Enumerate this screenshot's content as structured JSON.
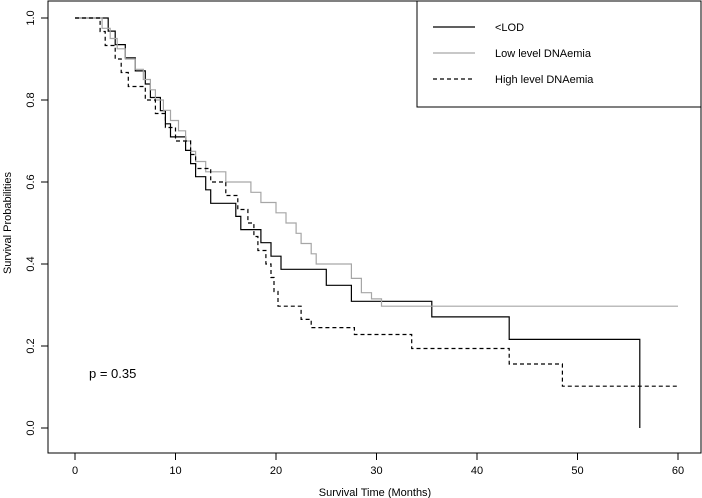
{
  "chart_data": {
    "type": "line",
    "title": "",
    "xlabel": "Survival Time (Months)",
    "ylabel": "Survival Probabilities",
    "xlim": [
      0,
      60
    ],
    "ylim": [
      0,
      1
    ],
    "xticks": [
      "0",
      "10",
      "20",
      "30",
      "40",
      "50",
      "60"
    ],
    "yticks": [
      "0.0",
      "0.2",
      "0.4",
      "0.6",
      "0.8",
      "1.0"
    ],
    "grid": false,
    "legend_position": "top-right",
    "annotation": "p = 0.35",
    "series": [
      {
        "name": "<LOD",
        "color": "#000000",
        "line_style": "solid",
        "points": [
          [
            0,
            1.0
          ],
          [
            3.3,
            1.0
          ],
          [
            3.3,
            0.968
          ],
          [
            4.0,
            0.968
          ],
          [
            4.0,
            0.935
          ],
          [
            5.0,
            0.935
          ],
          [
            5.0,
            0.903
          ],
          [
            6.0,
            0.903
          ],
          [
            6.0,
            0.871
          ],
          [
            7.0,
            0.871
          ],
          [
            7.0,
            0.839
          ],
          [
            7.5,
            0.839
          ],
          [
            7.5,
            0.806
          ],
          [
            8.5,
            0.806
          ],
          [
            8.5,
            0.774
          ],
          [
            9.0,
            0.774
          ],
          [
            9.0,
            0.742
          ],
          [
            9.5,
            0.742
          ],
          [
            9.5,
            0.71
          ],
          [
            11.0,
            0.71
          ],
          [
            11.0,
            0.677
          ],
          [
            11.5,
            0.677
          ],
          [
            11.5,
            0.645
          ],
          [
            12.0,
            0.645
          ],
          [
            12.0,
            0.613
          ],
          [
            13.0,
            0.613
          ],
          [
            13.0,
            0.581
          ],
          [
            13.5,
            0.581
          ],
          [
            13.5,
            0.548
          ],
          [
            16.0,
            0.548
          ],
          [
            16.0,
            0.516
          ],
          [
            16.5,
            0.516
          ],
          [
            16.5,
            0.484
          ],
          [
            18.5,
            0.484
          ],
          [
            18.5,
            0.452
          ],
          [
            19.5,
            0.452
          ],
          [
            19.5,
            0.419
          ],
          [
            20.5,
            0.419
          ],
          [
            20.5,
            0.387
          ],
          [
            25.0,
            0.387
          ],
          [
            25.0,
            0.348
          ],
          [
            27.5,
            0.348
          ],
          [
            27.5,
            0.309
          ],
          [
            35.5,
            0.309
          ],
          [
            35.5,
            0.271
          ],
          [
            43.2,
            0.271
          ],
          [
            43.2,
            0.216
          ],
          [
            56.2,
            0.216
          ],
          [
            56.2,
            0.0
          ]
        ]
      },
      {
        "name": "Low level DNAemia",
        "color": "#a6a6a6",
        "line_style": "solid",
        "points": [
          [
            0,
            1.0
          ],
          [
            2.7,
            1.0
          ],
          [
            2.7,
            0.975
          ],
          [
            3.5,
            0.975
          ],
          [
            3.5,
            0.95
          ],
          [
            4.2,
            0.95
          ],
          [
            4.2,
            0.925
          ],
          [
            5.0,
            0.925
          ],
          [
            5.0,
            0.9
          ],
          [
            6.0,
            0.9
          ],
          [
            6.0,
            0.875
          ],
          [
            6.8,
            0.875
          ],
          [
            6.8,
            0.85
          ],
          [
            7.5,
            0.85
          ],
          [
            7.5,
            0.825
          ],
          [
            8.0,
            0.825
          ],
          [
            8.0,
            0.8
          ],
          [
            8.8,
            0.8
          ],
          [
            8.8,
            0.775
          ],
          [
            9.5,
            0.775
          ],
          [
            9.5,
            0.75
          ],
          [
            10.3,
            0.75
          ],
          [
            10.3,
            0.725
          ],
          [
            11.0,
            0.725
          ],
          [
            11.0,
            0.7
          ],
          [
            11.5,
            0.7
          ],
          [
            11.5,
            0.675
          ],
          [
            12.0,
            0.675
          ],
          [
            12.0,
            0.65
          ],
          [
            13.0,
            0.65
          ],
          [
            13.0,
            0.625
          ],
          [
            15.0,
            0.625
          ],
          [
            15.0,
            0.6
          ],
          [
            17.5,
            0.6
          ],
          [
            17.5,
            0.575
          ],
          [
            18.5,
            0.575
          ],
          [
            18.5,
            0.55
          ],
          [
            20.0,
            0.55
          ],
          [
            20.0,
            0.525
          ],
          [
            21.0,
            0.525
          ],
          [
            21.0,
            0.5
          ],
          [
            22.0,
            0.5
          ],
          [
            22.0,
            0.475
          ],
          [
            22.5,
            0.475
          ],
          [
            22.5,
            0.45
          ],
          [
            23.5,
            0.45
          ],
          [
            23.5,
            0.425
          ],
          [
            24.0,
            0.425
          ],
          [
            24.0,
            0.4
          ],
          [
            27.5,
            0.4
          ],
          [
            27.5,
            0.365
          ],
          [
            28.5,
            0.365
          ],
          [
            28.5,
            0.33
          ],
          [
            29.5,
            0.33
          ],
          [
            29.5,
            0.315
          ],
          [
            30.5,
            0.315
          ],
          [
            30.5,
            0.297
          ],
          [
            60.0,
            0.297
          ]
        ]
      },
      {
        "name": "High level DNAemia",
        "color": "#000000",
        "line_style": "dashed",
        "points": [
          [
            0,
            1.0
          ],
          [
            2.5,
            1.0
          ],
          [
            2.5,
            0.967
          ],
          [
            3.0,
            0.967
          ],
          [
            3.0,
            0.933
          ],
          [
            4.0,
            0.933
          ],
          [
            4.0,
            0.9
          ],
          [
            4.6,
            0.9
          ],
          [
            4.6,
            0.867
          ],
          [
            5.3,
            0.867
          ],
          [
            5.3,
            0.833
          ],
          [
            7.0,
            0.833
          ],
          [
            7.0,
            0.8
          ],
          [
            8.0,
            0.8
          ],
          [
            8.0,
            0.767
          ],
          [
            9.0,
            0.767
          ],
          [
            9.0,
            0.733
          ],
          [
            10.0,
            0.733
          ],
          [
            10.0,
            0.7
          ],
          [
            11.5,
            0.7
          ],
          [
            11.5,
            0.667
          ],
          [
            12.0,
            0.667
          ],
          [
            12.0,
            0.633
          ],
          [
            13.5,
            0.633
          ],
          [
            13.5,
            0.6
          ],
          [
            15.0,
            0.6
          ],
          [
            15.0,
            0.567
          ],
          [
            16.2,
            0.567
          ],
          [
            16.2,
            0.533
          ],
          [
            17.2,
            0.533
          ],
          [
            17.2,
            0.5
          ],
          [
            17.8,
            0.5
          ],
          [
            17.8,
            0.467
          ],
          [
            18.2,
            0.467
          ],
          [
            18.2,
            0.433
          ],
          [
            19.0,
            0.433
          ],
          [
            19.0,
            0.4
          ],
          [
            19.5,
            0.4
          ],
          [
            19.5,
            0.367
          ],
          [
            19.8,
            0.367
          ],
          [
            19.8,
            0.333
          ],
          [
            20.2,
            0.333
          ],
          [
            20.2,
            0.297
          ],
          [
            22.5,
            0.297
          ],
          [
            22.5,
            0.265
          ],
          [
            23.5,
            0.265
          ],
          [
            23.5,
            0.245
          ],
          [
            27.8,
            0.245
          ],
          [
            27.8,
            0.228
          ],
          [
            33.5,
            0.228
          ],
          [
            33.5,
            0.194
          ],
          [
            43.2,
            0.194
          ],
          [
            43.2,
            0.156
          ],
          [
            48.5,
            0.156
          ],
          [
            48.5,
            0.102
          ],
          [
            60.0,
            0.102
          ]
        ]
      }
    ]
  }
}
